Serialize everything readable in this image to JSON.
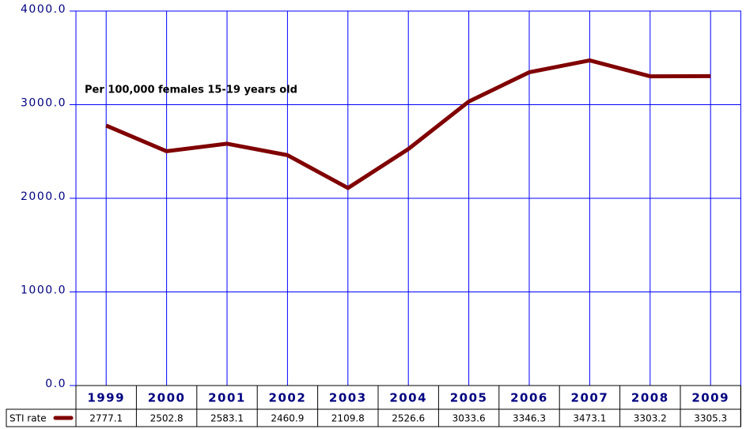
{
  "chart_data": {
    "type": "line",
    "annotation": "Per 100,000 females 15-19 years old",
    "categories": [
      "1999",
      "2000",
      "2001",
      "2002",
      "2003",
      "2004",
      "2005",
      "2006",
      "2007",
      "2008",
      "2009"
    ],
    "series": [
      {
        "name": "STI rate",
        "color": "#800000",
        "values": [
          2777.1,
          2502.8,
          2583.1,
          2460.9,
          2109.8,
          2526.6,
          3033.6,
          3346.3,
          3473.1,
          3303.2,
          3305.3
        ]
      }
    ],
    "ylim": [
      0,
      4000
    ],
    "yticks": [
      {
        "value": 0,
        "label": "0.0"
      },
      {
        "value": 1000,
        "label": "1000.0"
      },
      {
        "value": 2000,
        "label": "2000.0"
      },
      {
        "value": 3000,
        "label": "3000.0"
      },
      {
        "value": 4000,
        "label": "4000.0"
      }
    ],
    "grid": true
  }
}
